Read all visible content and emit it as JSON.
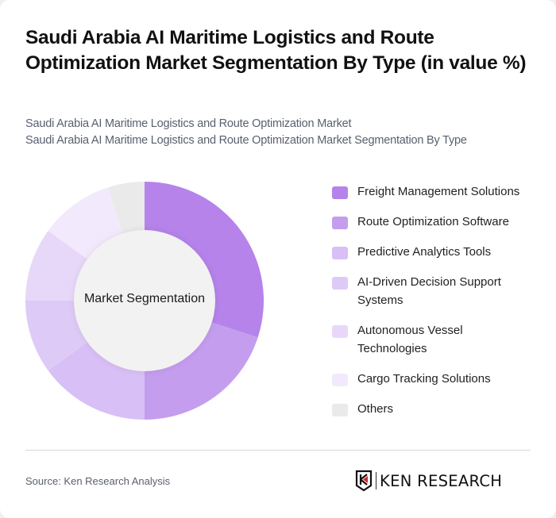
{
  "header": {
    "title": "Saudi Arabia AI Maritime Logistics and Route Optimization Market Segmentation By Type (in value %)",
    "subtitle_line1": "Saudi Arabia AI Maritime Logistics and Route Optimization Market",
    "subtitle_line2": "Saudi Arabia AI Maritime Logistics and Route Optimization Market Segmentation By Type"
  },
  "chart": {
    "center_label": "Market Segmentation"
  },
  "legend": {
    "items": [
      {
        "label": "Freight Management Solutions",
        "color": "#B583EA"
      },
      {
        "label": "Route Optimization Software",
        "color": "#C49DEE"
      },
      {
        "label": "Predictive Analytics Tools",
        "color": "#D8BFF5"
      },
      {
        "label": "AI-Driven Decision Support Systems",
        "color": "#DECAF6"
      },
      {
        "label": "Autonomous Vessel Technologies",
        "color": "#E7D8F9"
      },
      {
        "label": "Cargo Tracking Solutions",
        "color": "#F2EAFC"
      },
      {
        "label": "Others",
        "color": "#EAEAEA"
      }
    ]
  },
  "footer": {
    "source": "Source: Ken Research Analysis",
    "logo_text": "KEN RESEARCH"
  },
  "chart_data": {
    "type": "pie",
    "subtype": "donut",
    "title": "Saudi Arabia AI Maritime Logistics and Route Optimization Market Segmentation By Type (in value %)",
    "center_label": "Market Segmentation",
    "categories": [
      "Freight Management Solutions",
      "Route Optimization Software",
      "Predictive Analytics Tools",
      "AI-Driven Decision Support Systems",
      "Autonomous Vessel Technologies",
      "Cargo Tracking Solutions",
      "Others"
    ],
    "values": [
      30,
      20,
      15,
      10,
      10,
      10,
      5
    ],
    "colors": [
      "#B583EA",
      "#C49DEE",
      "#D8BFF5",
      "#DECAF6",
      "#E7D8F9",
      "#F2EAFC",
      "#EAEAEA"
    ],
    "unit": "%",
    "legend_position": "right",
    "start_angle": "top, clockwise"
  }
}
